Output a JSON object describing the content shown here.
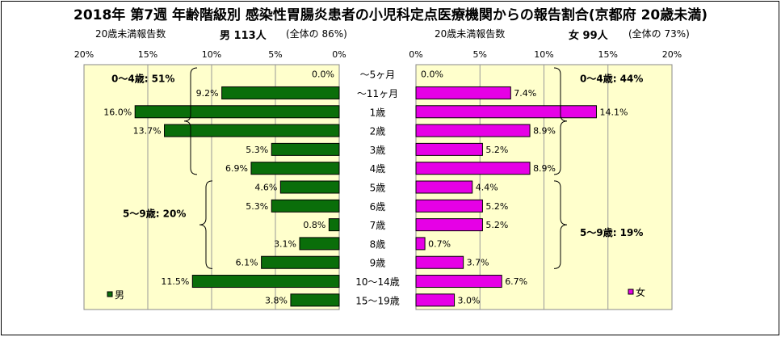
{
  "title": "2018年 第7週 年齢階級別 感染性胃腸炎患者の小児科定点医療機関からの報告割合(京都府 20歳未満)",
  "left_header": {
    "caption": "20歳未満報告数",
    "sex_count": "男 113人",
    "ratio": "(全体の 86%)"
  },
  "right_header": {
    "caption": "20歳未満報告数",
    "sex_count": "女 99人",
    "ratio": "(全体の 73%)"
  },
  "chart_data": [
    {
      "type": "bar",
      "orientation": "horizontal",
      "direction": "right-to-left",
      "series": [
        {
          "name": "男",
          "values": [
            0.0,
            9.2,
            16.0,
            13.7,
            5.3,
            6.9,
            4.6,
            5.3,
            0.8,
            3.1,
            6.1,
            11.5,
            3.8
          ]
        }
      ],
      "data_labels": [
        "0.0%",
        "9.2%",
        "16.0%",
        "13.7%",
        "5.3%",
        "6.9%",
        "4.6%",
        "5.3%",
        "0.8%",
        "3.1%",
        "6.1%",
        "11.5%",
        "3.8%"
      ],
      "xlim": [
        0,
        20
      ],
      "xticks": [
        "20%",
        "15%",
        "10%",
        "5%",
        "0%"
      ],
      "color": "#0a6e0a",
      "legend": "男",
      "legend_position": "bottom-left",
      "grid": true,
      "annotations": [
        "0〜4歳: 51%",
        "5〜9歳: 20%"
      ]
    },
    {
      "type": "bar",
      "orientation": "horizontal",
      "direction": "left-to-right",
      "series": [
        {
          "name": "女",
          "values": [
            0.0,
            7.4,
            14.1,
            8.9,
            5.2,
            8.9,
            4.4,
            5.2,
            5.2,
            0.7,
            3.7,
            6.7,
            3.0
          ]
        }
      ],
      "data_labels": [
        "0.0%",
        "7.4%",
        "14.1%",
        "8.9%",
        "5.2%",
        "8.9%",
        "4.4%",
        "5.2%",
        "5.2%",
        "0.7%",
        "3.7%",
        "6.7%",
        "3.0%"
      ],
      "xlim": [
        0,
        20
      ],
      "xticks": [
        "0%",
        "5%",
        "10%",
        "15%",
        "20%"
      ],
      "color": "#e600e6",
      "legend": "女",
      "legend_position": "bottom-right",
      "grid": true,
      "annotations": [
        "0〜4歳: 44%",
        "5〜9歳: 19%"
      ]
    }
  ],
  "categories": [
    "〜5ヶ月",
    "〜11ヶ月",
    "1歳",
    "2歳",
    "3歳",
    "4歳",
    "5歳",
    "6歳",
    "7歳",
    "8歳",
    "9歳",
    "10〜14歳",
    "15〜19歳"
  ],
  "colors": {
    "plot_bg": "#ffffcc",
    "bar_border": "#000000",
    "male": "#0a6e0a",
    "female": "#e600e6"
  }
}
